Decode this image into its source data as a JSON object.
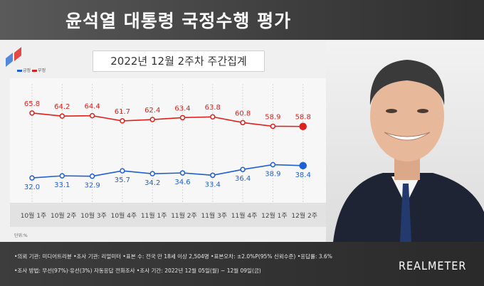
{
  "header": {
    "title": "윤석열 대통령 국정수행 평가"
  },
  "subtitle": "2022년 12월 2주차 주간집계",
  "legend": {
    "positive": "긍정",
    "negative": "부정"
  },
  "unit": "단위:%",
  "colors": {
    "negative": "#e0201c",
    "positive": "#1f5fd6",
    "header_bg": "#4a4a4a",
    "footer_bg": "#333333"
  },
  "chart_data": {
    "type": "line",
    "categories": [
      "10월 1주",
      "10월 2주",
      "10월 3주",
      "10월 4주",
      "11월 1주",
      "11월 2주",
      "11월 3주",
      "11월 4주",
      "12월 1주",
      "12월 2주"
    ],
    "series": [
      {
        "name": "부정",
        "values": [
          65.8,
          64.2,
          64.4,
          61.7,
          62.4,
          63.4,
          63.8,
          60.8,
          58.9,
          58.8
        ]
      },
      {
        "name": "긍정",
        "values": [
          32.0,
          33.1,
          32.9,
          35.7,
          34.2,
          34.6,
          33.4,
          36.4,
          38.9,
          38.4
        ]
      }
    ],
    "xlabel": "",
    "ylabel": "",
    "grid": false
  },
  "footer": {
    "line1": "•의뢰 기관: 미디어트리뷴 •조사 기관: 리얼미터 •표본 수: 전국 만 18세 이상 2,504명 •표본오차: ±2.0%P(95% 신뢰수준) •응답률: 3.6%",
    "line2": "•조사 방법: 무선(97%)·유선(3%) 자동응답 전화조사 •조사 기간: 2022년 12월 05일(월) ~ 12월 09일(금)",
    "brand": "REALMETER"
  }
}
